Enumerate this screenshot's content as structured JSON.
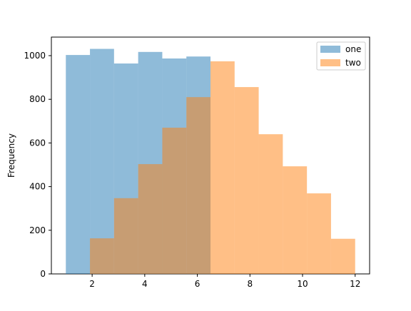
{
  "chart_data": {
    "type": "bar",
    "title": "",
    "xlabel": "",
    "ylabel": "Frequency",
    "xlim": [
      0.45,
      12.55
    ],
    "ylim": [
      0,
      1085
    ],
    "grid": false,
    "legend_position": "top-right",
    "x_ticks": [
      2,
      4,
      6,
      8,
      10,
      12
    ],
    "y_ticks": [
      0,
      200,
      400,
      600,
      800,
      1000
    ],
    "bin_edges": [
      1.0,
      1.917,
      2.833,
      3.75,
      4.667,
      5.583,
      6.5
    ],
    "overlay_bin_edges": [
      6.5,
      7.417,
      8.333,
      9.25,
      10.167,
      11.083,
      12.0
    ],
    "series": [
      {
        "name": "one",
        "color": "#1f77b4",
        "opacity": 0.5,
        "bins": [
          {
            "start": 1.0,
            "end": 1.917,
            "value": 1003
          },
          {
            "start": 1.917,
            "end": 2.833,
            "value": 1031
          },
          {
            "start": 2.833,
            "end": 3.75,
            "value": 964
          },
          {
            "start": 3.75,
            "end": 4.667,
            "value": 1017
          },
          {
            "start": 4.667,
            "end": 5.583,
            "value": 987
          },
          {
            "start": 5.583,
            "end": 6.5,
            "value": 996
          }
        ]
      },
      {
        "name": "two",
        "color": "#ff7f0e",
        "opacity": 0.5,
        "bins": [
          {
            "start": 1.917,
            "end": 2.833,
            "value": 163
          },
          {
            "start": 2.833,
            "end": 3.75,
            "value": 347
          },
          {
            "start": 3.75,
            "end": 4.667,
            "value": 503
          },
          {
            "start": 4.667,
            "end": 5.583,
            "value": 670
          },
          {
            "start": 5.583,
            "end": 6.5,
            "value": 810
          },
          {
            "start": 6.5,
            "end": 7.417,
            "value": 974
          },
          {
            "start": 7.417,
            "end": 8.333,
            "value": 856
          },
          {
            "start": 8.333,
            "end": 9.25,
            "value": 640
          },
          {
            "start": 9.25,
            "end": 10.167,
            "value": 493
          },
          {
            "start": 10.167,
            "end": 11.083,
            "value": 369
          },
          {
            "start": 11.083,
            "end": 12.0,
            "value": 161
          }
        ]
      }
    ]
  }
}
